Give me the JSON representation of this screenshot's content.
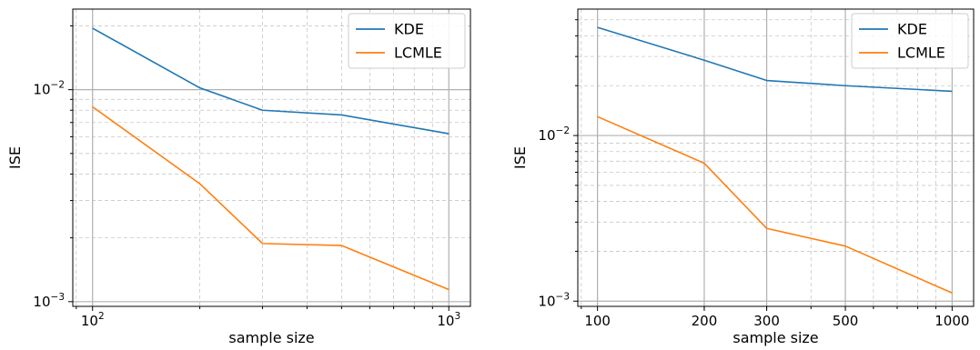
{
  "chart_data": [
    {
      "type": "line",
      "title": "",
      "xlabel": "sample size",
      "ylabel": "ISE",
      "xscale": "log",
      "yscale": "log",
      "xlim": [
        88,
        1150
      ],
      "ylim": [
        0.00095,
        0.024
      ],
      "grid": "major and minor (minor dashed)",
      "legend_position": "top-right",
      "x_ticks": [
        {
          "value": 100,
          "base": "10",
          "exp": "2"
        },
        {
          "value": 1000,
          "base": "10",
          "exp": "3"
        }
      ],
      "y_ticks": [
        {
          "value": 0.01,
          "base": "10",
          "exp": "−2"
        },
        {
          "value": 0.001,
          "base": "10",
          "exp": "−3"
        }
      ],
      "x": [
        100,
        200,
        300,
        500,
        1000
      ],
      "series": [
        {
          "name": "KDE",
          "color": "#1f77b4",
          "values": [
            0.0195,
            0.0102,
            0.008,
            0.0076,
            0.0062
          ]
        },
        {
          "name": "LCMLE",
          "color": "#ff7f0e",
          "values": [
            0.0083,
            0.0036,
            0.00188,
            0.00184,
            0.00114
          ]
        }
      ]
    },
    {
      "type": "line",
      "title": "",
      "xlabel": "sample size",
      "ylabel": "ISE",
      "xscale": "log",
      "yscale": "log",
      "xlim": [
        88,
        1150
      ],
      "ylim": [
        0.00093,
        0.058
      ],
      "grid": "major and minor (minor dashed)",
      "legend_position": "top-right",
      "x_ticks": [
        {
          "value": 100,
          "label": "100"
        },
        {
          "value": 200,
          "label": "200"
        },
        {
          "value": 300,
          "label": "300"
        },
        {
          "value": 500,
          "label": "500"
        },
        {
          "value": 1000,
          "label": "1000"
        }
      ],
      "y_ticks": [
        {
          "value": 0.01,
          "base": "10",
          "exp": "−2"
        },
        {
          "value": 0.001,
          "base": "10",
          "exp": "−3"
        }
      ],
      "x": [
        100,
        200,
        300,
        500,
        1000
      ],
      "series": [
        {
          "name": "KDE",
          "color": "#1f77b4",
          "values": [
            0.045,
            0.0285,
            0.0215,
            0.02,
            0.0185
          ]
        },
        {
          "name": "LCMLE",
          "color": "#ff7f0e",
          "values": [
            0.013,
            0.0068,
            0.00275,
            0.00215,
            0.00112
          ]
        }
      ]
    }
  ]
}
